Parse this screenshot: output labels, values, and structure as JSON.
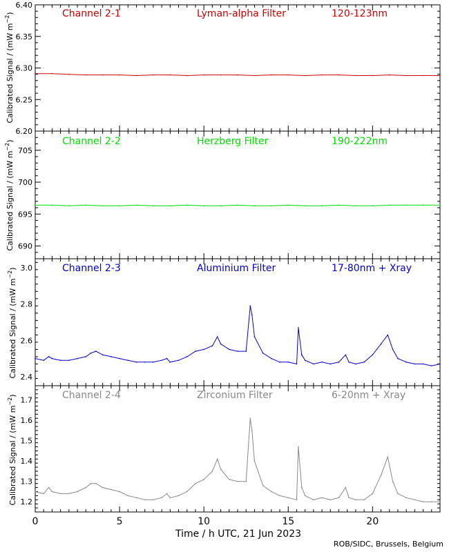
{
  "footer_credit": "ROB/SIDC, Brussels, Belgium",
  "xlabel": "Time / h UTC, 21 Jun 2023",
  "x_ticks": [
    "0",
    "5",
    "10",
    "15",
    "20"
  ],
  "ylabel_text": "Calibrated Signal / (mW m",
  "ylabel_exp": "−2",
  "ylabel_close": ")",
  "chart_data": [
    {
      "type": "line",
      "channel": "Channel 2-1",
      "filter": "Lyman-alpha Filter",
      "band": "120-123nm",
      "color": "#cc0000",
      "xlim": [
        0,
        24
      ],
      "ylim": [
        6.2,
        6.4
      ],
      "yticks": [
        "6.20",
        "6.25",
        "6.30",
        "6.35",
        "6.40"
      ],
      "ytick_values": [
        6.2,
        6.25,
        6.3,
        6.35,
        6.4
      ],
      "x": [
        0,
        1,
        2,
        3,
        4,
        5,
        6,
        7,
        8,
        9,
        10,
        11,
        12,
        13,
        14,
        15,
        16,
        17,
        18,
        19,
        20,
        21,
        22,
        23,
        24
      ],
      "y": [
        6.291,
        6.291,
        6.29,
        6.289,
        6.289,
        6.289,
        6.288,
        6.289,
        6.289,
        6.288,
        6.289,
        6.289,
        6.289,
        6.288,
        6.289,
        6.289,
        6.288,
        6.289,
        6.289,
        6.288,
        6.288,
        6.289,
        6.288,
        6.288,
        6.288
      ]
    },
    {
      "type": "line",
      "channel": "Channel 2-2",
      "filter": "Herzberg Filter",
      "band": "190-222nm",
      "color": "#00dd00",
      "xlim": [
        0,
        24
      ],
      "ylim": [
        688,
        708
      ],
      "yticks": [
        "690",
        "695",
        "700",
        "705"
      ],
      "ytick_values": [
        690,
        695,
        700,
        705
      ],
      "x": [
        0,
        1,
        2,
        3,
        4,
        5,
        6,
        7,
        8,
        9,
        10,
        11,
        12,
        13,
        14,
        15,
        16,
        17,
        18,
        19,
        20,
        21,
        22,
        23,
        24
      ],
      "y": [
        696.4,
        696.4,
        696.3,
        696.4,
        696.3,
        696.3,
        696.4,
        696.3,
        696.3,
        696.4,
        696.3,
        696.3,
        696.4,
        696.3,
        696.3,
        696.4,
        696.3,
        696.3,
        696.4,
        696.3,
        696.3,
        696.4,
        696.4,
        696.4,
        696.4
      ]
    },
    {
      "type": "line",
      "channel": "Channel 2-3",
      "filter": "Aluminium Filter",
      "band": "17-80nm + Xray",
      "color": "#0000cc",
      "xlim": [
        0,
        24
      ],
      "ylim": [
        2.35,
        3.05
      ],
      "yticks": [
        "2.4",
        "2.6",
        "2.8",
        "3.0"
      ],
      "ytick_values": [
        2.4,
        2.6,
        2.8,
        3.0
      ],
      "x": [
        0,
        0.5,
        0.8,
        1.0,
        1.5,
        2.0,
        2.5,
        3.0,
        3.3,
        3.6,
        4.0,
        4.5,
        5.0,
        5.5,
        6.0,
        6.5,
        7.0,
        7.5,
        7.8,
        8.0,
        8.5,
        9.0,
        9.5,
        10.0,
        10.5,
        10.8,
        11.0,
        11.5,
        12.0,
        12.5,
        12.75,
        12.85,
        13.0,
        13.5,
        14.0,
        14.5,
        15.0,
        15.5,
        15.6,
        15.8,
        16.0,
        16.5,
        17.0,
        17.5,
        18.0,
        18.4,
        18.6,
        19.0,
        19.5,
        20.0,
        20.5,
        20.9,
        21.2,
        21.5,
        22.0,
        22.5,
        23.0,
        23.5,
        24.0
      ],
      "y": [
        2.5,
        2.49,
        2.51,
        2.5,
        2.49,
        2.49,
        2.5,
        2.51,
        2.53,
        2.54,
        2.52,
        2.51,
        2.5,
        2.49,
        2.48,
        2.48,
        2.48,
        2.49,
        2.5,
        2.48,
        2.49,
        2.51,
        2.54,
        2.55,
        2.57,
        2.62,
        2.58,
        2.55,
        2.54,
        2.54,
        2.79,
        2.74,
        2.62,
        2.53,
        2.5,
        2.48,
        2.48,
        2.47,
        2.67,
        2.52,
        2.49,
        2.47,
        2.48,
        2.47,
        2.48,
        2.52,
        2.48,
        2.47,
        2.48,
        2.52,
        2.58,
        2.63,
        2.55,
        2.5,
        2.48,
        2.47,
        2.47,
        2.46,
        2.47
      ]
    },
    {
      "type": "line",
      "channel": "Channel 2-4",
      "filter": "Zirconium Filter",
      "band": "6-20nm + Xray",
      "color": "#888888",
      "xlim": [
        0,
        24
      ],
      "ylim": [
        1.15,
        1.77
      ],
      "yticks": [
        "1.2",
        "1.3",
        "1.4",
        "1.5",
        "1.6",
        "1.7"
      ],
      "ytick_values": [
        1.2,
        1.3,
        1.4,
        1.5,
        1.6,
        1.7
      ],
      "x": [
        0,
        0.5,
        0.8,
        1.0,
        1.5,
        2.0,
        2.5,
        3.0,
        3.3,
        3.6,
        4.0,
        4.5,
        5.0,
        5.5,
        6.0,
        6.5,
        7.0,
        7.5,
        7.8,
        8.0,
        8.5,
        9.0,
        9.5,
        10.0,
        10.5,
        10.8,
        11.0,
        11.5,
        12.0,
        12.5,
        12.75,
        12.85,
        13.0,
        13.5,
        14.0,
        14.5,
        15.0,
        15.5,
        15.6,
        15.8,
        16.0,
        16.5,
        17.0,
        17.5,
        18.0,
        18.4,
        18.6,
        19.0,
        19.5,
        20.0,
        20.5,
        20.9,
        21.2,
        21.5,
        22.0,
        22.5,
        23.0,
        23.5,
        24.0
      ],
      "y": [
        1.25,
        1.24,
        1.27,
        1.25,
        1.24,
        1.24,
        1.25,
        1.27,
        1.29,
        1.29,
        1.27,
        1.26,
        1.25,
        1.23,
        1.22,
        1.21,
        1.21,
        1.22,
        1.24,
        1.22,
        1.23,
        1.25,
        1.29,
        1.31,
        1.35,
        1.41,
        1.36,
        1.31,
        1.3,
        1.3,
        1.61,
        1.55,
        1.4,
        1.28,
        1.25,
        1.23,
        1.22,
        1.21,
        1.47,
        1.27,
        1.23,
        1.21,
        1.22,
        1.21,
        1.22,
        1.27,
        1.22,
        1.21,
        1.21,
        1.24,
        1.33,
        1.42,
        1.3,
        1.24,
        1.22,
        1.21,
        1.2,
        1.2,
        1.2
      ]
    }
  ]
}
